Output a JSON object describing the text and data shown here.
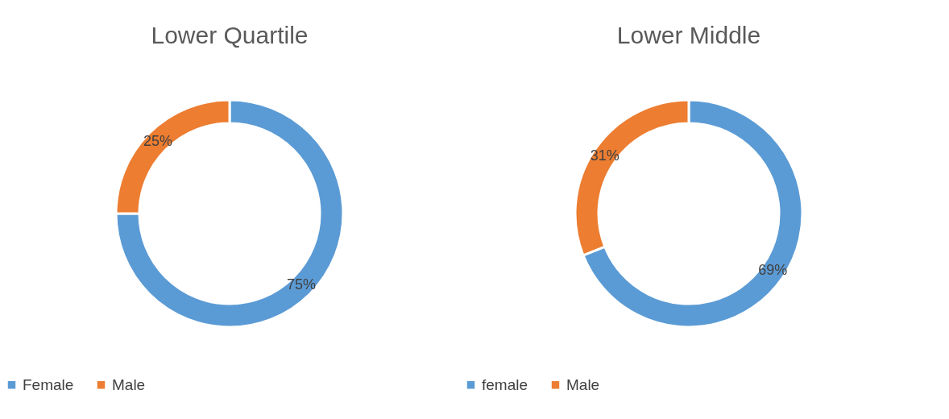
{
  "chart_data": [
    {
      "type": "donut",
      "title": "Lower Quartile",
      "categories": [
        "Female",
        "Male"
      ],
      "values": [
        75,
        25
      ],
      "colors": [
        "#5b9bd5",
        "#ed7d31"
      ],
      "value_labels": [
        "75%",
        "25%"
      ],
      "legend": "bottom"
    },
    {
      "type": "donut",
      "title": "Lower Middle",
      "categories": [
        "female",
        "Male"
      ],
      "values": [
        69,
        31
      ],
      "colors": [
        "#5b9bd5",
        "#ed7d31"
      ],
      "value_labels": [
        "69%",
        "31%"
      ],
      "legend": "bottom"
    }
  ]
}
